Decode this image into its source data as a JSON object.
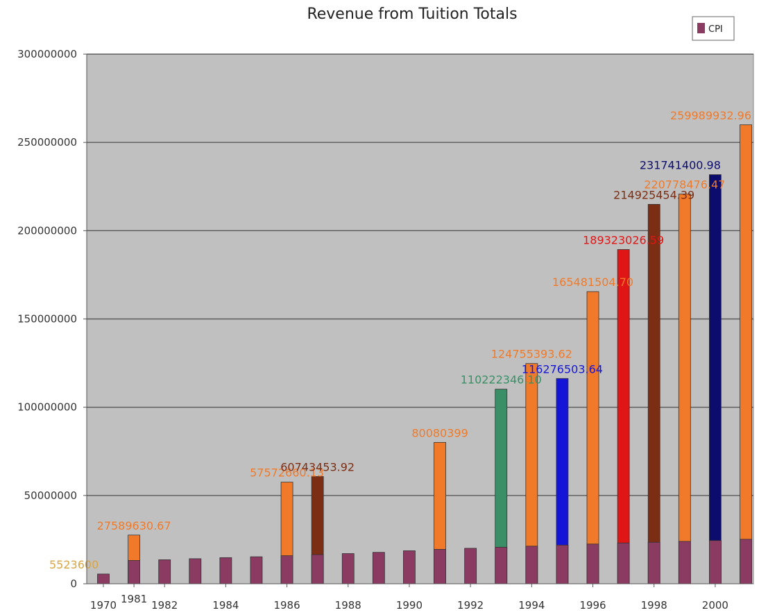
{
  "chart_data": {
    "type": "bar",
    "title": "Revenue from Tuition Totals",
    "xlabel": "",
    "ylabel": "",
    "ylim": [
      0,
      300000000
    ],
    "y_ticks": [
      "0",
      "50000000",
      "100000000",
      "150000000",
      "200000000",
      "250000000",
      "300000000"
    ],
    "grid": true,
    "legend_position": "top-right",
    "x_tick_labels": [
      "1970",
      "1981",
      "1982",
      "1984",
      "1986",
      "1988",
      "1990",
      "1992",
      "1994",
      "1996",
      "1998",
      "2000"
    ],
    "categories": [
      "1970",
      "1981",
      "1982",
      "1983",
      "1984",
      "1985",
      "1986",
      "1987",
      "1988",
      "1989",
      "1990",
      "1991",
      "1992",
      "1993",
      "1994",
      "1995",
      "1996",
      "1997",
      "1998",
      "1999",
      "2000",
      "2001"
    ],
    "series": [
      {
        "name": "CPI",
        "color": "#8b3a62",
        "values": [
          5523600,
          13200000,
          13600000,
          14200000,
          14800000,
          15300000,
          15900000,
          16500000,
          17100000,
          17800000,
          18700000,
          19500000,
          20100000,
          20700000,
          21300000,
          21900000,
          22500000,
          23100000,
          23500000,
          24000000,
          24500000,
          25200000
        ]
      },
      {
        "values": [
          null,
          27589630.67,
          null,
          null,
          null,
          null,
          57572660.13,
          60743453.92,
          null,
          null,
          null,
          80080399,
          null,
          110222346.1,
          124755393.62,
          116276503.64,
          165481504.7,
          189323026.59,
          214925454.39,
          220778476.47,
          231741400.98,
          259989932.96
        ],
        "colors": [
          null,
          "#f07a2a",
          null,
          null,
          null,
          null,
          "#f07a2a",
          "#7b2e14",
          null,
          null,
          null,
          "#f07a2a",
          null,
          "#3a8f66",
          "#f07a2a",
          "#1515d8",
          "#f07a2a",
          "#e01515",
          "#7b2e14",
          "#f07a2a",
          "#0c0c6e",
          "#f07a2a"
        ]
      }
    ],
    "data_labels": [
      {
        "category": "1970",
        "text": "5523600",
        "color": "#d9a441"
      },
      {
        "category": "1981",
        "text": "27589630.67",
        "color": "#f07a2a"
      },
      {
        "category": "1986",
        "text": "57572660.13",
        "color": "#f07a2a"
      },
      {
        "category": "1987",
        "text": "60743453.92",
        "color": "#7b2e14"
      },
      {
        "category": "1991",
        "text": "80080399",
        "color": "#f07a2a"
      },
      {
        "category": "1993",
        "text": "110222346.10",
        "color": "#3a8f66"
      },
      {
        "category": "1994",
        "text": "124755393.62",
        "color": "#f07a2a"
      },
      {
        "category": "1995",
        "text": "116276503.64",
        "color": "#1515d8"
      },
      {
        "category": "1996",
        "text": "165481504.70",
        "color": "#f07a2a"
      },
      {
        "category": "1997",
        "text": "189323026.59",
        "color": "#e01515"
      },
      {
        "category": "1998",
        "text": "214925454.39",
        "color": "#7b2e14"
      },
      {
        "category": "1999",
        "text": "220778476.47",
        "color": "#f07a2a"
      },
      {
        "category": "2000",
        "text": "231741400.98",
        "color": "#0c0c6e"
      },
      {
        "category": "2001",
        "text": "259989932.96",
        "color": "#f07a2a"
      }
    ],
    "legend": [
      {
        "label": "CPI",
        "color": "#8b3a62"
      }
    ],
    "plot_background": "#c0c0c0"
  }
}
